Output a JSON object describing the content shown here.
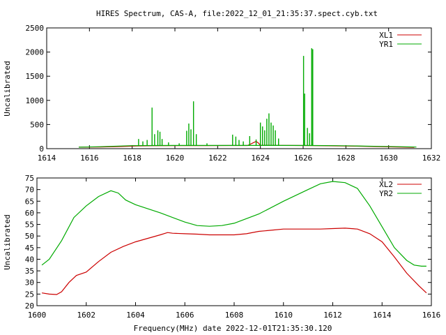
{
  "chart_data": [
    {
      "type": "line",
      "title": "HIRES Spectrum, CAS-A, file:2022_12_01_21:35:37.spect.cyb.txt",
      "xlabel": "",
      "ylabel": "Uncalibrated",
      "xlim": [
        1614,
        1632
      ],
      "ylim": [
        0,
        2500
      ],
      "x_ticks": [
        1614,
        1616,
        1618,
        1620,
        1622,
        1624,
        1626,
        1628,
        1630,
        1632
      ],
      "y_ticks": [
        0,
        500,
        1000,
        1500,
        2000,
        2500
      ],
      "legend_position": "top-right",
      "grid": false,
      "series": [
        {
          "name": "XL1",
          "color": "#cc0000",
          "x": [
            1615.5,
            1616.5,
            1617.5,
            1618.2,
            1619.0,
            1620.0,
            1620.8,
            1621.5,
            1622.5,
            1623.4,
            1623.8,
            1623.9,
            1624.0,
            1624.5,
            1625.0,
            1626.0,
            1626.5,
            1627.5,
            1628.5,
            1629.2,
            1629.6,
            1630.0,
            1630.6,
            1631.2
          ],
          "y": [
            30,
            35,
            45,
            55,
            60,
            62,
            63,
            64,
            65,
            65,
            150,
            120,
            70,
            68,
            66,
            65,
            63,
            58,
            52,
            45,
            42,
            38,
            32,
            28
          ]
        },
        {
          "name": "YR1",
          "color": "#00aa00",
          "x": [
            1615.5,
            1616.5,
            1617.5,
            1618.0,
            1619.0,
            1620.0,
            1620.8,
            1621.5,
            1622.5,
            1623.5,
            1624.5,
            1625.5,
            1626.5,
            1627.5,
            1628.5,
            1629.5,
            1630.5,
            1631.3
          ],
          "y": [
            30,
            40,
            55,
            62,
            65,
            66,
            66,
            66,
            67,
            67,
            66,
            66,
            65,
            62,
            56,
            48,
            40,
            33
          ],
          "spikes": [
            {
              "x": 1618.3,
              "y": 200
            },
            {
              "x": 1618.5,
              "y": 150
            },
            {
              "x": 1618.7,
              "y": 180
            },
            {
              "x": 1618.93,
              "y": 850
            },
            {
              "x": 1619.05,
              "y": 300
            },
            {
              "x": 1619.2,
              "y": 380
            },
            {
              "x": 1619.3,
              "y": 350
            },
            {
              "x": 1619.4,
              "y": 200
            },
            {
              "x": 1619.7,
              "y": 130
            },
            {
              "x": 1620.2,
              "y": 110
            },
            {
              "x": 1620.55,
              "y": 370
            },
            {
              "x": 1620.65,
              "y": 520
            },
            {
              "x": 1620.75,
              "y": 400
            },
            {
              "x": 1620.87,
              "y": 980
            },
            {
              "x": 1621.0,
              "y": 300
            },
            {
              "x": 1621.5,
              "y": 110
            },
            {
              "x": 1622.7,
              "y": 290
            },
            {
              "x": 1622.85,
              "y": 250
            },
            {
              "x": 1623.0,
              "y": 180
            },
            {
              "x": 1623.2,
              "y": 150
            },
            {
              "x": 1623.5,
              "y": 260
            },
            {
              "x": 1623.8,
              "y": 190
            },
            {
              "x": 1624.0,
              "y": 540
            },
            {
              "x": 1624.1,
              "y": 460
            },
            {
              "x": 1624.2,
              "y": 380
            },
            {
              "x": 1624.3,
              "y": 620
            },
            {
              "x": 1624.4,
              "y": 730
            },
            {
              "x": 1624.5,
              "y": 540
            },
            {
              "x": 1624.6,
              "y": 480
            },
            {
              "x": 1624.7,
              "y": 380
            },
            {
              "x": 1624.85,
              "y": 210
            },
            {
              "x": 1626.02,
              "y": 1920
            },
            {
              "x": 1626.07,
              "y": 1140
            },
            {
              "x": 1626.2,
              "y": 430
            },
            {
              "x": 1626.3,
              "y": 320
            },
            {
              "x": 1626.4,
              "y": 2080
            },
            {
              "x": 1626.45,
              "y": 2060
            }
          ]
        }
      ]
    },
    {
      "type": "line",
      "title": "",
      "xlabel": "Frequency(MHz) date 2022-12-01T21:35:30.120",
      "ylabel": "Uncalibrated",
      "xlim": [
        1600,
        1616
      ],
      "ylim": [
        20,
        75
      ],
      "x_ticks": [
        1600,
        1602,
        1604,
        1606,
        1608,
        1610,
        1612,
        1614,
        1616
      ],
      "y_ticks": [
        20,
        25,
        30,
        35,
        40,
        45,
        50,
        55,
        60,
        65,
        70,
        75
      ],
      "legend_position": "top-right",
      "grid": false,
      "series": [
        {
          "name": "XL2",
          "color": "#cc0000",
          "x": [
            1600.2,
            1600.5,
            1600.8,
            1601.0,
            1601.3,
            1601.6,
            1602.0,
            1602.5,
            1603.0,
            1603.5,
            1604.0,
            1604.5,
            1605.0,
            1605.3,
            1605.5,
            1606.0,
            1606.5,
            1607.0,
            1607.5,
            1608.0,
            1608.5,
            1609.0,
            1609.5,
            1610.0,
            1610.5,
            1611.0,
            1611.5,
            1612.0,
            1612.5,
            1613.0,
            1613.5,
            1614.0,
            1614.5,
            1615.0,
            1615.5,
            1615.8
          ],
          "y": [
            25.5,
            25.0,
            24.8,
            26.0,
            30.0,
            33.0,
            34.5,
            39.0,
            43.0,
            45.5,
            47.5,
            49.0,
            50.5,
            51.5,
            51.2,
            51.0,
            50.8,
            50.5,
            50.5,
            50.5,
            51.0,
            52.0,
            52.5,
            53.0,
            53.0,
            53.0,
            53.0,
            53.2,
            53.4,
            53.0,
            51.0,
            47.5,
            41.0,
            34.0,
            28.5,
            25.5
          ]
        },
        {
          "name": "YR2",
          "color": "#00aa00",
          "x": [
            1600.2,
            1600.5,
            1601.0,
            1601.5,
            1602.0,
            1602.5,
            1603.0,
            1603.3,
            1603.6,
            1604.0,
            1605.0,
            1606.0,
            1606.5,
            1607.0,
            1607.5,
            1608.0,
            1609.0,
            1610.0,
            1611.0,
            1611.5,
            1612.0,
            1612.5,
            1613.0,
            1613.5,
            1614.0,
            1614.5,
            1615.0,
            1615.3,
            1615.6,
            1615.8
          ],
          "y": [
            37.5,
            40.0,
            48.0,
            58.0,
            63.0,
            67.0,
            69.5,
            68.5,
            65.5,
            63.5,
            60.0,
            56.0,
            54.5,
            54.2,
            54.5,
            55.5,
            59.5,
            65.0,
            70.0,
            72.5,
            73.5,
            73.0,
            70.5,
            63.0,
            54.0,
            45.0,
            39.5,
            37.5,
            37.0,
            37.0
          ]
        }
      ]
    }
  ]
}
